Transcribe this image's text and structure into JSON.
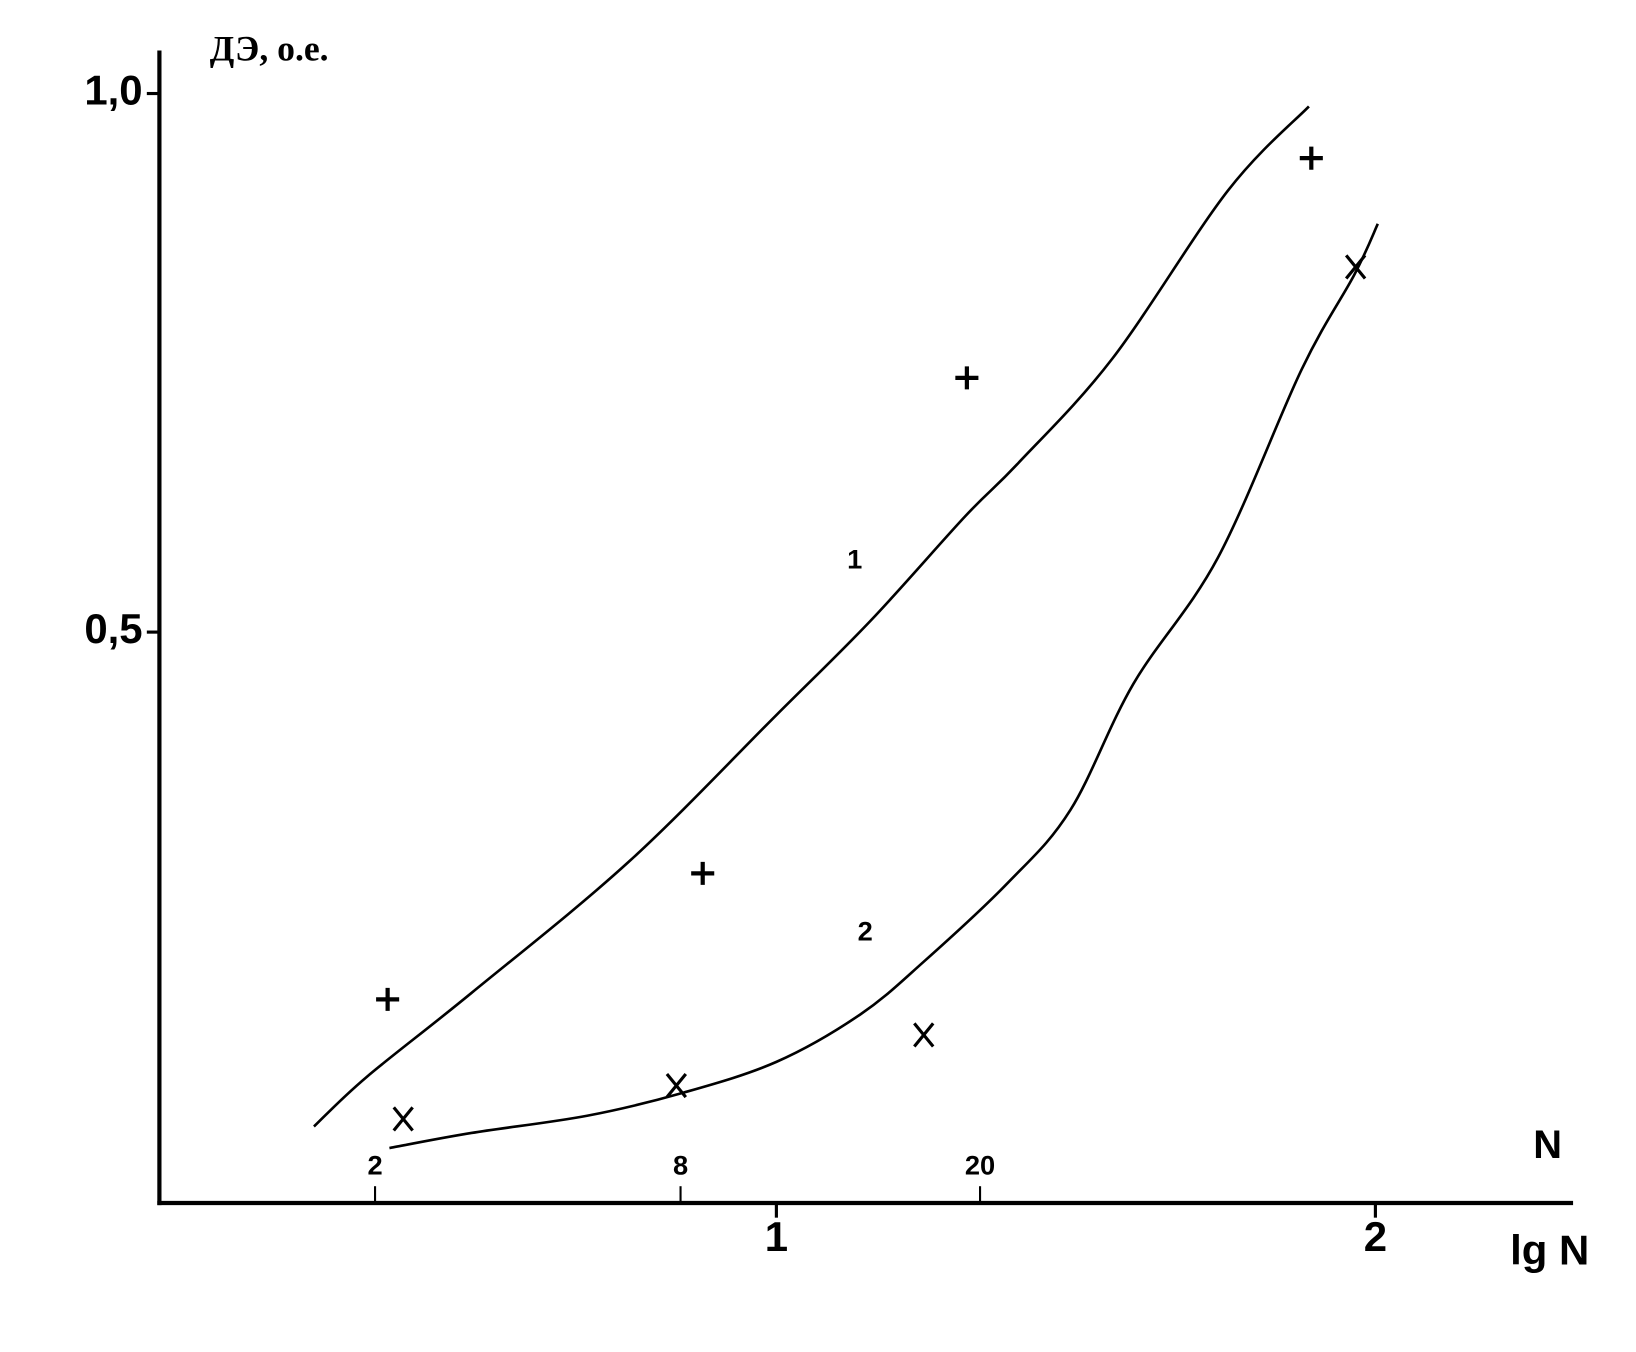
{
  "chart_data": {
    "type": "line",
    "y_label": "ДЭ, о.е.",
    "x_label": "lg N",
    "x2_label": "N",
    "xlim": [
      -0.03,
      2.33
    ],
    "ylim": [
      -0.03,
      1.04
    ],
    "xticks": [
      1,
      2
    ],
    "x2ticks": [
      {
        "value": 0.33,
        "label": "2"
      },
      {
        "value": 0.84,
        "label": "8"
      },
      {
        "value": 1.34,
        "label": "20"
      }
    ],
    "yticks": [
      {
        "value": 1.0,
        "label": "1,0"
      },
      {
        "value": 0.5,
        "label": "0,5"
      }
    ],
    "color": "#000000",
    "series": [
      {
        "name": "1",
        "x": [
          0.228,
          0.316,
          0.491,
          0.754,
          1.0,
          1.158,
          1.316,
          1.404,
          1.561,
          1.754,
          1.889
        ],
        "values": [
          0.041,
          0.087,
          0.165,
          0.287,
          0.423,
          0.511,
          0.608,
          0.657,
          0.754,
          0.91,
          0.988
        ]
      },
      {
        "name": "2",
        "x": [
          0.354,
          0.491,
          0.684,
          0.842,
          1.0,
          1.14,
          1.246,
          1.386,
          1.491,
          1.596,
          1.737,
          1.877,
          1.965,
          2.004
        ],
        "values": [
          0.021,
          0.035,
          0.051,
          0.072,
          0.101,
          0.145,
          0.194,
          0.267,
          0.335,
          0.452,
          0.569,
          0.744,
          0.832,
          0.879
        ]
      }
    ],
    "points": [
      {
        "marker": "plus",
        "x": [
          0.351,
          0.877,
          1.318,
          1.893
        ],
        "values": [
          0.159,
          0.276,
          0.736,
          0.94
        ]
      },
      {
        "marker": "cross",
        "x": [
          0.377,
          0.833,
          1.246,
          1.967
        ],
        "values": [
          0.048,
          0.079,
          0.126,
          0.839
        ]
      }
    ]
  }
}
